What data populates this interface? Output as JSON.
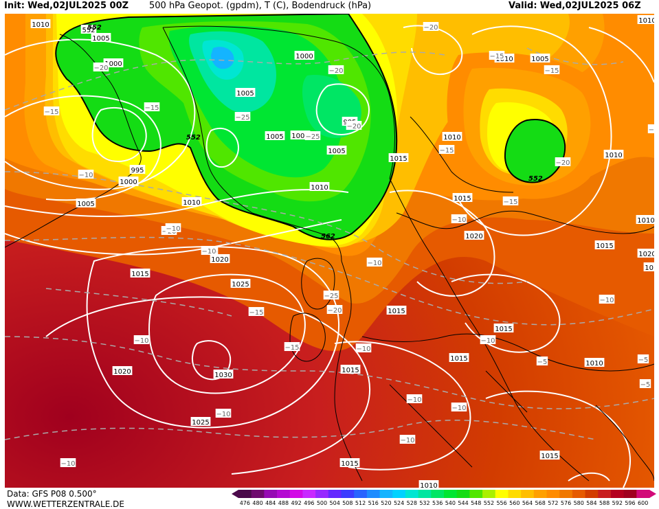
{
  "header": {
    "init_label": "Init:",
    "init_value": "Wed,02JUL2025 00Z",
    "title": "500 hPa Geopot. (gpdm), T (C), Bodendruck (hPa)",
    "valid_label": "Valid:",
    "valid_value": "Wed,02JUL2025 06Z"
  },
  "footer": {
    "data_source": "Data: GFS P08 0.500°",
    "website": "WWW.WETTERZENTRALE.DE"
  },
  "color_scale": {
    "ticks": [
      "476",
      "480",
      "484",
      "488",
      "492",
      "496",
      "500",
      "504",
      "508",
      "512",
      "516",
      "520",
      "524",
      "528",
      "532",
      "536",
      "540",
      "544",
      "548",
      "552",
      "556",
      "560",
      "564",
      "568",
      "572",
      "576",
      "580",
      "584",
      "588",
      "592",
      "596",
      "600"
    ],
    "colors": [
      "#4b0a4b",
      "#6e0a6e",
      "#960ab4",
      "#b40ad2",
      "#d20ae6",
      "#c828ff",
      "#9628ff",
      "#6428ff",
      "#3c3cff",
      "#2864ff",
      "#1e8cff",
      "#14b4ff",
      "#00d2ff",
      "#00e6d2",
      "#00e6a0",
      "#00e664",
      "#00e632",
      "#14dc14",
      "#50e600",
      "#aaf000",
      "#ffff00",
      "#ffdc00",
      "#ffbe00",
      "#ffa000",
      "#ff8c00",
      "#f07800",
      "#e65a00",
      "#d23c00",
      "#c81e1e",
      "#b4001e",
      "#a0001e",
      "#d20a78"
    ]
  },
  "pressure_labels": [
    {
      "text": "1010"
    },
    {
      "text": "552"
    },
    {
      "text": "1005"
    },
    {
      "text": "1000"
    },
    {
      "text": "1000"
    },
    {
      "text": "1000"
    },
    {
      "text": "1005"
    },
    {
      "text": "1005"
    },
    {
      "text": "1000"
    },
    {
      "text": "995"
    },
    {
      "text": "1005"
    },
    {
      "text": "1010"
    },
    {
      "text": "995"
    },
    {
      "text": "1000"
    },
    {
      "text": "1005"
    },
    {
      "text": "1010"
    },
    {
      "text": "1015"
    },
    {
      "text": "1020"
    },
    {
      "text": "1010"
    },
    {
      "text": "1010"
    },
    {
      "text": "1005"
    },
    {
      "text": "1010"
    },
    {
      "text": "1015"
    },
    {
      "text": "1010"
    },
    {
      "text": "1020"
    },
    {
      "text": "1010"
    },
    {
      "text": "1015"
    },
    {
      "text": "1020"
    },
    {
      "text": "1015"
    },
    {
      "text": "1025"
    },
    {
      "text": "1015"
    },
    {
      "text": "1015"
    },
    {
      "text": "1015"
    },
    {
      "text": "1030"
    },
    {
      "text": "1020"
    },
    {
      "text": "1015"
    },
    {
      "text": "1025"
    },
    {
      "text": "1015"
    },
    {
      "text": "1010"
    },
    {
      "text": "1015"
    },
    {
      "text": "1010"
    },
    {
      "text": "1010"
    }
  ],
  "temp_labels": [
    {
      "text": "-20"
    },
    {
      "text": "-20"
    },
    {
      "text": "-15"
    },
    {
      "text": "-15"
    },
    {
      "text": "-20"
    },
    {
      "text": "-25"
    },
    {
      "text": "-20"
    },
    {
      "text": "-25"
    },
    {
      "text": "-20"
    },
    {
      "text": "-15"
    },
    {
      "text": "-15"
    },
    {
      "text": "-20"
    },
    {
      "text": "-15"
    },
    {
      "text": "-10"
    },
    {
      "text": "-10"
    },
    {
      "text": "-15"
    },
    {
      "text": "-10"
    },
    {
      "text": "-15"
    },
    {
      "text": "-15"
    },
    {
      "text": "-10"
    },
    {
      "text": "-25"
    },
    {
      "text": "-20"
    },
    {
      "text": "-15"
    },
    {
      "text": "-10"
    },
    {
      "text": "-10"
    },
    {
      "text": "-10"
    },
    {
      "text": "-10"
    },
    {
      "text": "-5"
    },
    {
      "text": "-5"
    },
    {
      "text": "-5"
    },
    {
      "text": "-10"
    },
    {
      "text": "-10"
    },
    {
      "text": "-10"
    },
    {
      "text": "-10"
    },
    {
      "text": "-10"
    },
    {
      "text": "-10"
    },
    {
      "text": "-5"
    }
  ],
  "contour_552_labels": [
    {
      "text": "552"
    },
    {
      "text": "552"
    },
    {
      "text": "562"
    },
    {
      "text": "552"
    }
  ]
}
